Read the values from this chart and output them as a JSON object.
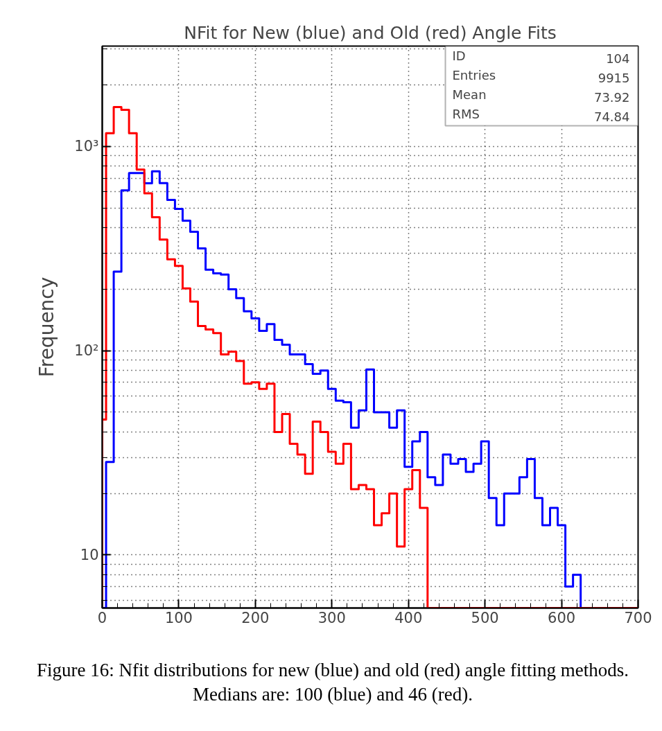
{
  "chart_data": {
    "type": "histogram",
    "title": "NFit for New (blue) and Old (red) Angle Fits",
    "ylabel": "Frequency",
    "bins": [
      0,
      5,
      15,
      25,
      35,
      45,
      55,
      65,
      75,
      85,
      95,
      105,
      115,
      125,
      135,
      145,
      155,
      165,
      175,
      185,
      195,
      205,
      215,
      225,
      235,
      245,
      255,
      265,
      275,
      285,
      295,
      305,
      315,
      325,
      335,
      345,
      355,
      365,
      375,
      385,
      395,
      405,
      415,
      425,
      435,
      445,
      455,
      465,
      475,
      485,
      495,
      505,
      515,
      525,
      535,
      545,
      555,
      565,
      575,
      585,
      595,
      605,
      615,
      625,
      635,
      645,
      655,
      665,
      675,
      685,
      695,
      700
    ],
    "series": [
      {
        "color": "#0000ff",
        "values": [
          null,
          28.5,
          244,
          610,
          741,
          741,
          660,
          755,
          662,
          547,
          495,
          433,
          382,
          317,
          249,
          239,
          236,
          200,
          181,
          156,
          144,
          125,
          135,
          113,
          107,
          96,
          96,
          86,
          77,
          80,
          65,
          57,
          56,
          42,
          51,
          81,
          50,
          50,
          42,
          51,
          27,
          36,
          40,
          24,
          22,
          31,
          28,
          29.5,
          25.5,
          28,
          36,
          19,
          14,
          20,
          20,
          24,
          29.5,
          19,
          14,
          17,
          14,
          7,
          8,
          null,
          null,
          null,
          null,
          null,
          null,
          null,
          null
        ]
      },
      {
        "color": "#ff0000",
        "values": [
          46,
          1160,
          1560,
          1510,
          1160,
          770,
          590,
          450,
          350,
          280,
          260,
          202,
          174,
          132,
          127,
          122,
          96,
          99,
          89,
          69,
          70,
          65,
          69,
          40,
          49,
          35,
          31,
          25,
          45,
          40,
          32,
          28,
          35,
          21,
          22,
          21,
          14,
          16,
          20,
          11,
          21,
          26,
          17,
          null,
          null,
          null,
          null,
          null,
          null,
          null,
          null,
          null,
          null,
          null,
          null,
          null,
          null,
          null,
          null,
          null,
          null,
          null,
          null,
          null,
          null,
          null,
          null,
          null,
          null,
          null,
          null
        ]
      }
    ],
    "log": true,
    "xlim": [
      0,
      700
    ],
    "ylim": [
      5.5,
      3100
    ],
    "xticks": [
      0,
      {
        "value": 20,
        "label": null
      },
      {
        "value": 40,
        "label": null
      },
      {
        "value": 60,
        "label": null
      },
      {
        "value": 80,
        "label": null
      },
      100,
      {
        "value": 120,
        "label": null
      },
      {
        "value": 140,
        "label": null
      },
      {
        "value": 160,
        "label": null
      },
      {
        "value": 180,
        "label": null
      },
      200,
      {
        "value": 220,
        "label": null
      },
      {
        "value": 240,
        "label": null
      },
      {
        "value": 260,
        "label": null
      },
      {
        "value": 280,
        "label": null
      },
      300,
      {
        "value": 320,
        "label": null
      },
      {
        "value": 340,
        "label": null
      },
      {
        "value": 360,
        "label": null
      },
      {
        "value": 380,
        "label": null
      },
      400,
      {
        "value": 420,
        "label": null
      },
      {
        "value": 440,
        "label": null
      },
      {
        "value": 460,
        "label": null
      },
      {
        "value": 480,
        "label": null
      },
      500,
      {
        "value": 520,
        "label": null
      },
      {
        "value": 540,
        "label": null
      },
      {
        "value": 560,
        "label": null
      },
      {
        "value": 580,
        "label": null
      },
      600,
      {
        "value": 620,
        "label": null
      },
      {
        "value": 640,
        "label": null
      },
      {
        "value": 660,
        "label": null
      },
      {
        "value": 680,
        "label": null
      },
      700
    ],
    "yticks": [
      {
        "value": 6,
        "label": null
      },
      {
        "value": 7,
        "label": null
      },
      {
        "value": 8,
        "label": null
      },
      {
        "value": 9,
        "label": null
      },
      10,
      {
        "value": 20,
        "label": null
      },
      {
        "value": 30,
        "label": null
      },
      {
        "value": 40,
        "label": null
      },
      {
        "value": 50,
        "label": null
      },
      {
        "value": 60,
        "label": null
      },
      {
        "value": 70,
        "label": null
      },
      {
        "value": 80,
        "label": null
      },
      {
        "value": 90,
        "label": null
      },
      {
        "value": 100,
        "label": "10²"
      },
      {
        "value": 200,
        "label": null
      },
      {
        "value": 300,
        "label": null
      },
      {
        "value": 400,
        "label": null
      },
      {
        "value": 500,
        "label": null
      },
      {
        "value": 600,
        "label": null
      },
      {
        "value": 700,
        "label": null
      },
      {
        "value": 800,
        "label": null
      },
      {
        "value": 900,
        "label": null
      },
      {
        "value": 1000,
        "label": "10³"
      },
      {
        "value": 2000,
        "label": null
      },
      {
        "value": 3000,
        "label": null
      }
    ],
    "grid": true,
    "annotations": [
      "ID",
      "104",
      "Entries",
      "9915",
      "Mean",
      "73.92",
      "RMS",
      "74.84",
      "Figure 16: Nfit distributions for new (blue) and old (red) angle fitting methods. Medians are: 100 (blue) and 46 (red)."
    ]
  }
}
